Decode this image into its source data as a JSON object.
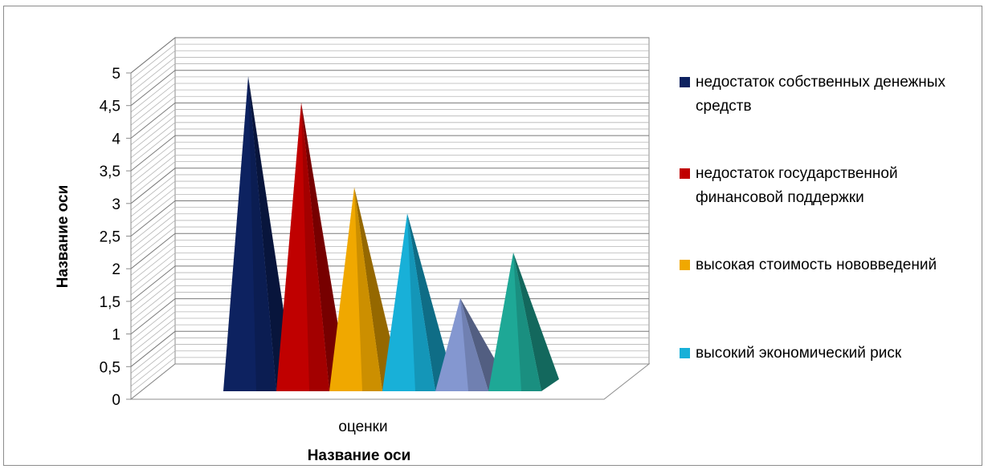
{
  "chart_data": {
    "type": "bar",
    "style": "3d-pyramid",
    "categories": [
      "оценки"
    ],
    "series": [
      {
        "name": "недостаток собственных денежных средств",
        "values": [
          4.8
        ],
        "color": "#0d2260"
      },
      {
        "name": "недостаток государственной финансовой поддержки",
        "values": [
          4.4
        ],
        "color": "#c00000"
      },
      {
        "name": "высокая стоимость нововведений",
        "values": [
          3.1
        ],
        "color": "#f0a800"
      },
      {
        "name": "высокий экономический риск",
        "values": [
          2.7
        ],
        "color": "#18b0d8"
      },
      {
        "name": "",
        "values": [
          1.4
        ],
        "color": "#8497d0"
      },
      {
        "name": "",
        "values": [
          2.1
        ],
        "color": "#1ea896"
      }
    ],
    "xlabel": "Название оси",
    "ylabel": "Название оси",
    "ylim": [
      0,
      5
    ],
    "yticks": [
      "0",
      "0,5",
      "1",
      "1,5",
      "2",
      "2,5",
      "3",
      "3,5",
      "4",
      "4,5",
      "5"
    ],
    "grid": true,
    "legend": "right"
  }
}
